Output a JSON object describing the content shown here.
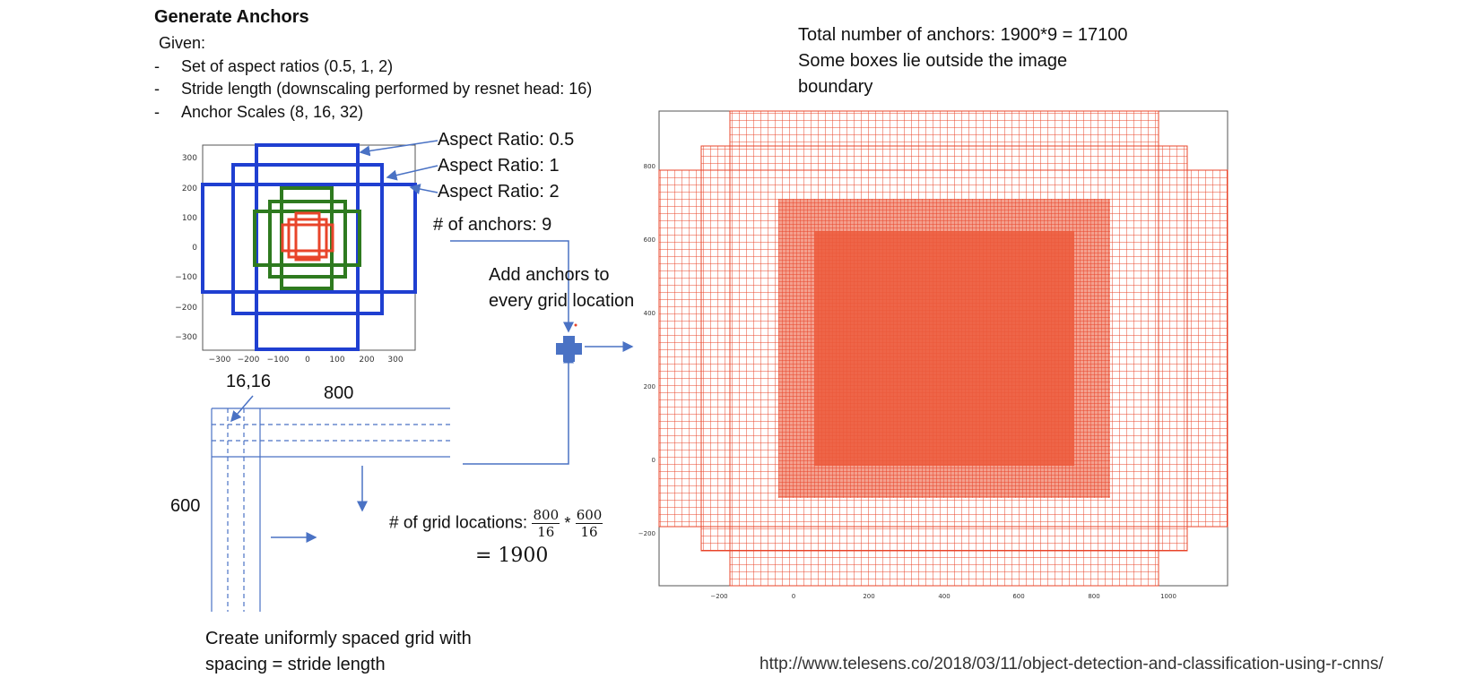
{
  "heading": "Generate Anchors",
  "given": {
    "label": "Given:",
    "items": [
      "Set of aspect ratios (0.5, 1, 2)",
      "Stride length (downscaling performed by resnet head: 16)",
      "Anchor Scales (8, 16, 32)"
    ],
    "bullet": "-"
  },
  "anchor_plot": {
    "ticks_x": [
      "−300",
      "−200",
      "−100",
      "0",
      "100",
      "200",
      "300"
    ],
    "ticks_y": [
      "300",
      "200",
      "100",
      "0",
      "−100",
      "−200",
      "−300"
    ],
    "colors": {
      "large": "#1f3fd1",
      "medium": "#2e7a1f",
      "small": "#e8442a"
    }
  },
  "annotations": {
    "ratio_05": "Aspect Ratio: 0.5",
    "ratio_1": "Aspect Ratio: 1",
    "ratio_2": "Aspect Ratio: 2",
    "num_anchors": "# of anchors: 9",
    "add_anchors_line1": "Add anchors to",
    "add_anchors_line2": "every grid location"
  },
  "grid": {
    "corner_label": "16,16",
    "width_label": "800",
    "height_label": "600",
    "caption_line1": "Create uniformly spaced grid with",
    "caption_line2": "spacing = stride length"
  },
  "grid_locations": {
    "prefix": "# of grid locations:",
    "frac1_num": "800",
    "frac1_den": "16",
    "times": "*",
    "frac2_num": "600",
    "frac2_den": "16",
    "result": "= 1900"
  },
  "total": {
    "line1": "Total number of anchors: 1900*9 = 17100",
    "line2": "Some boxes lie outside the image",
    "line3": "boundary"
  },
  "anchors_plot": {
    "ticks_x": [
      "−200",
      "0",
      "200",
      "400",
      "600",
      "800",
      "1000"
    ],
    "ticks_y": [
      "800",
      "600",
      "400",
      "200",
      "0",
      "−200"
    ],
    "color": "#e8442a"
  },
  "source_url": "http://www.telesens.co/2018/03/11/object-detection-and-classification-using-r-cnns/"
}
